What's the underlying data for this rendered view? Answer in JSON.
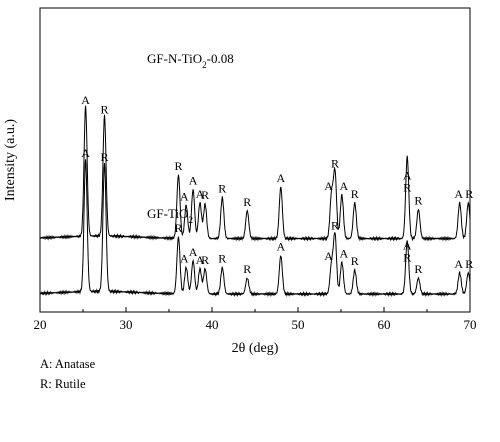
{
  "chart_data": {
    "type": "line",
    "xlabel": "2θ (deg)",
    "ylabel": "Intensity (a.u.)",
    "xlim": [
      20,
      70
    ],
    "x_ticks": [
      "20",
      "30",
      "40",
      "50",
      "60",
      "70"
    ],
    "grid": false,
    "series": [
      {
        "name": "GF-N-TiO2-0.08",
        "name_main": "GF-N-TiO",
        "name_sub": "2",
        "name_suffix": "-0.08",
        "baseline_level": 0.42,
        "peaks": [
          {
            "x": 25.3,
            "height": 0.98,
            "label": "A"
          },
          {
            "x": 27.5,
            "height": 0.91,
            "label": "R"
          },
          {
            "x": 36.1,
            "height": 0.48,
            "label": "R"
          },
          {
            "x": 37.0,
            "height": 0.25,
            "label": "A"
          },
          {
            "x": 37.8,
            "height": 0.37,
            "label": "A"
          },
          {
            "x": 38.6,
            "height": 0.27,
            "label": "A"
          },
          {
            "x": 39.2,
            "height": 0.26,
            "label": "R"
          },
          {
            "x": 41.2,
            "height": 0.31,
            "label": "R"
          },
          {
            "x": 44.1,
            "height": 0.21,
            "label": "R"
          },
          {
            "x": 48.0,
            "height": 0.39,
            "label": "A"
          },
          {
            "x": 53.9,
            "height": 0.33,
            "label": "A"
          },
          {
            "x": 54.3,
            "height": 0.5,
            "label": "R"
          },
          {
            "x": 55.1,
            "height": 0.33,
            "label": "A"
          },
          {
            "x": 56.6,
            "height": 0.27,
            "label": "R"
          },
          {
            "x": 62.7,
            "height": 0.31,
            "label": "A"
          },
          {
            "x": 62.7,
            "height": 0.31,
            "label": "R"
          },
          {
            "x": 64.0,
            "height": 0.22,
            "label": "R"
          },
          {
            "x": 68.8,
            "height": 0.27,
            "label": "A"
          },
          {
            "x": 69.8,
            "height": 0.27,
            "label": "R"
          }
        ]
      },
      {
        "name": "GF-TiO2",
        "name_main": "GF-TiO",
        "name_sub": "2",
        "name_suffix": "",
        "baseline_level": 0.0,
        "peaks": [
          {
            "x": 25.3,
            "height": 1.0,
            "label": "A"
          },
          {
            "x": 27.5,
            "height": 0.97,
            "label": "R"
          },
          {
            "x": 36.1,
            "height": 0.43,
            "label": "R"
          },
          {
            "x": 37.0,
            "height": 0.2,
            "label": "A"
          },
          {
            "x": 37.8,
            "height": 0.25,
            "label": "A"
          },
          {
            "x": 38.6,
            "height": 0.19,
            "label": "A"
          },
          {
            "x": 39.2,
            "height": 0.19,
            "label": "R"
          },
          {
            "x": 41.2,
            "height": 0.2,
            "label": "R"
          },
          {
            "x": 44.1,
            "height": 0.12,
            "label": "R"
          },
          {
            "x": 48.0,
            "height": 0.29,
            "label": "A"
          },
          {
            "x": 53.9,
            "height": 0.22,
            "label": "A"
          },
          {
            "x": 54.3,
            "height": 0.45,
            "label": "R"
          },
          {
            "x": 55.1,
            "height": 0.24,
            "label": "A"
          },
          {
            "x": 56.6,
            "height": 0.18,
            "label": "R"
          },
          {
            "x": 62.7,
            "height": 0.2,
            "label": "A"
          },
          {
            "x": 62.7,
            "height": 0.2,
            "label": "R"
          },
          {
            "x": 64.0,
            "height": 0.12,
            "label": "R"
          },
          {
            "x": 68.8,
            "height": 0.16,
            "label": "A"
          },
          {
            "x": 69.8,
            "height": 0.16,
            "label": "R"
          }
        ]
      }
    ],
    "phase_legend": [
      {
        "symbol": "A",
        "text": "A: Anatase"
      },
      {
        "symbol": "R",
        "text": "R: Rutile"
      }
    ]
  }
}
